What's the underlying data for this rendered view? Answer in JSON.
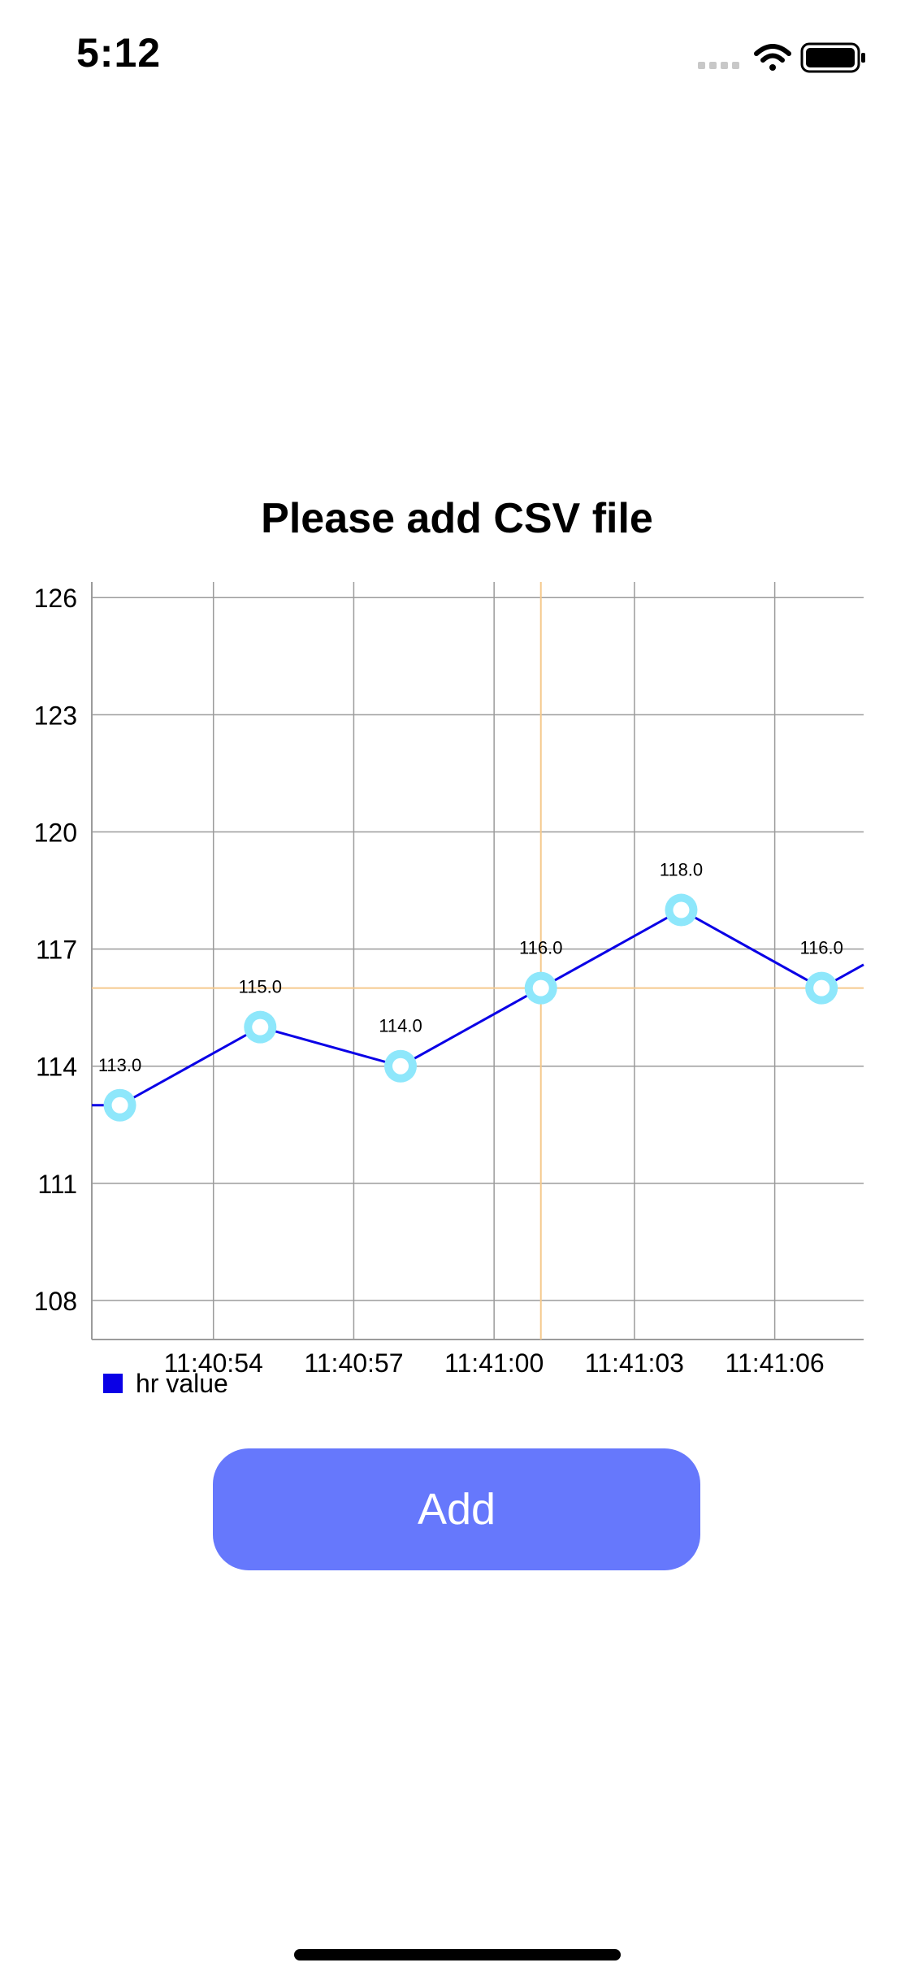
{
  "status_bar": {
    "time": "5:12"
  },
  "screen": {
    "title": "Please add CSV file"
  },
  "add_button": {
    "label": "Add"
  },
  "colors": {
    "series_line": "#0a00e6",
    "point_ring": "#8ee7fb",
    "grid": "#9b9b9b",
    "highlight": "#f5c98d",
    "button": "#6678fc"
  },
  "chart_data": {
    "type": "line",
    "title": "",
    "xlabel": "",
    "ylabel": "",
    "ylim": [
      107,
      126.4
    ],
    "y_ticks": [
      108,
      111,
      114,
      117,
      120,
      123,
      126
    ],
    "x_ticks": [
      {
        "t": 54,
        "label": "11:40:54"
      },
      {
        "t": 57,
        "label": "11:40:57"
      },
      {
        "t": 60,
        "label": "11:41:00"
      },
      {
        "t": 63,
        "label": "11:41:03"
      },
      {
        "t": 66,
        "label": "11:41:06"
      }
    ],
    "xlim": [
      51.4,
      67.9
    ],
    "series": [
      {
        "name": "hr value",
        "points": [
          {
            "t": 51.4,
            "y": 113,
            "hidden": true
          },
          {
            "t": 52,
            "y": 113,
            "label": "113.0"
          },
          {
            "t": 55,
            "y": 115,
            "label": "115.0"
          },
          {
            "t": 58,
            "y": 114,
            "label": "114.0"
          },
          {
            "t": 61,
            "y": 116,
            "label": "116.0"
          },
          {
            "t": 64,
            "y": 118,
            "label": "118.0"
          },
          {
            "t": 67,
            "y": 116,
            "label": "116.0"
          },
          {
            "t": 67.9,
            "y": 116.6,
            "hidden": true
          }
        ]
      }
    ],
    "highlight": {
      "t": 61,
      "y": 116
    },
    "legend": {
      "position": "bottom-left"
    },
    "grid": true
  }
}
